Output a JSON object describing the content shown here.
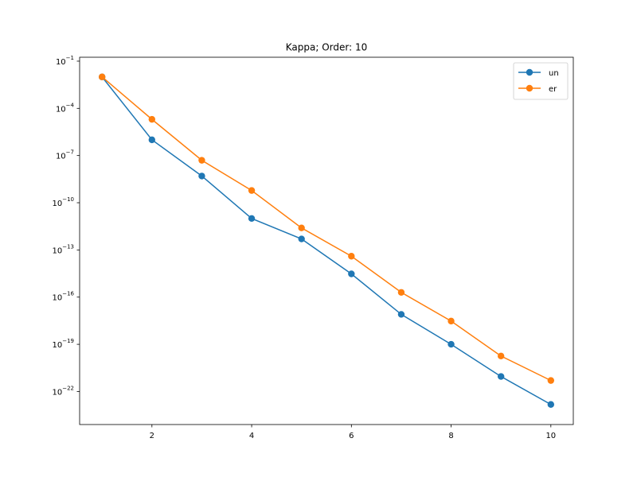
{
  "chart_data": {
    "type": "line",
    "title": "Kappa; Order: 10",
    "xlabel": "",
    "ylabel": "",
    "y_scale": "log",
    "x_ticks": [
      2,
      4,
      6,
      8,
      10
    ],
    "y_ticks": [
      {
        "exp": -1,
        "base": "10",
        "sup": "−1"
      },
      {
        "exp": -4,
        "base": "10",
        "sup": "−4"
      },
      {
        "exp": -7,
        "base": "10",
        "sup": "−7"
      },
      {
        "exp": -10,
        "base": "10",
        "sup": "−10"
      },
      {
        "exp": -13,
        "base": "10",
        "sup": "−13"
      },
      {
        "exp": -16,
        "base": "10",
        "sup": "−16"
      },
      {
        "exp": -19,
        "base": "10",
        "sup": "−19"
      },
      {
        "exp": -22,
        "base": "10",
        "sup": "−22"
      }
    ],
    "xlim": [
      0.55,
      10.45
    ],
    "ylim_log10": [
      -24.1,
      -0.75
    ],
    "grid": false,
    "legend_position": "top-right",
    "x": [
      1,
      2,
      3,
      4,
      5,
      6,
      7,
      8,
      9,
      10
    ],
    "series": [
      {
        "name": "un",
        "color": "#1f77b4",
        "values": [
          0.01,
          1e-06,
          5e-09,
          1e-11,
          5e-13,
          3e-15,
          8e-18,
          1e-19,
          9e-22,
          1.5e-23
        ]
      },
      {
        "name": "er",
        "color": "#ff7f0e",
        "values": [
          0.01,
          2e-05,
          5e-08,
          6e-10,
          2.5e-12,
          4e-14,
          2e-16,
          3e-18,
          1.8e-20,
          5e-22
        ]
      }
    ]
  }
}
